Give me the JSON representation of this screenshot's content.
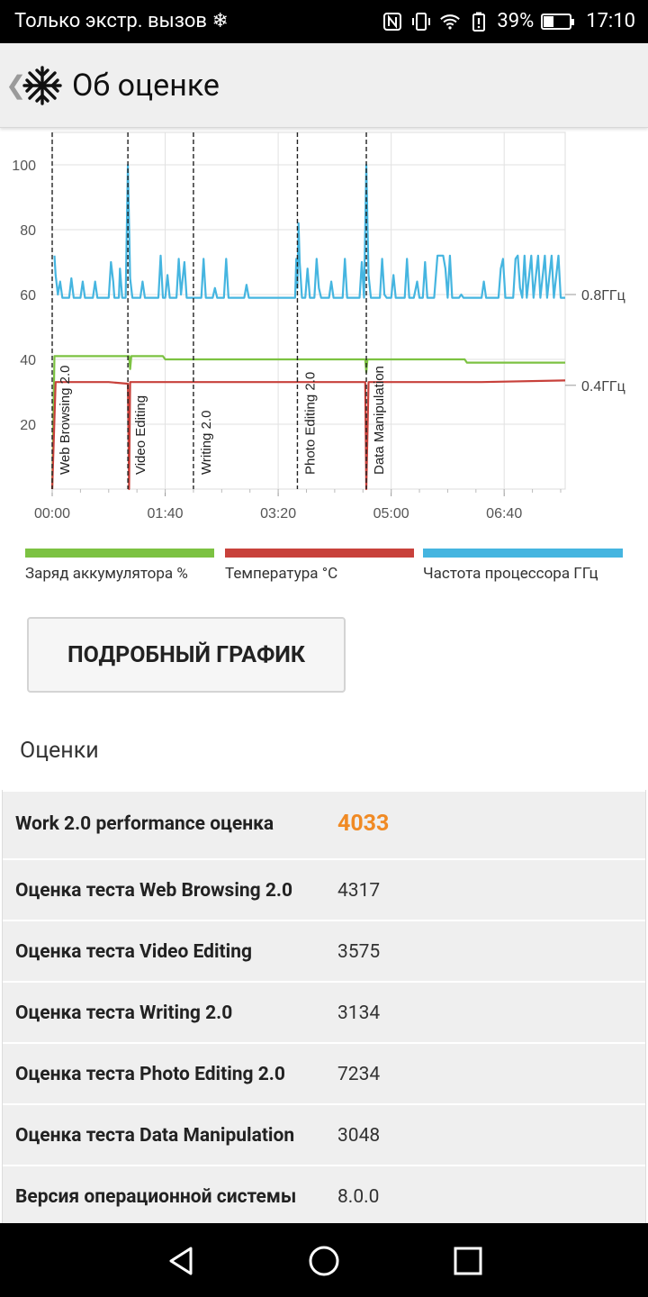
{
  "status_bar": {
    "carrier": "Только экстр. вызов",
    "battery": "39%",
    "time": "17:10",
    "icons": [
      "snowflake-icon",
      "nfc-icon",
      "vibrate-icon",
      "wifi-icon",
      "battery-alert-icon",
      "battery-icon"
    ]
  },
  "app_bar": {
    "title": "Об оценке",
    "back_icon": "chevron-left-icon",
    "logo_icon": "snowflake-logo-icon"
  },
  "chart_data": {
    "type": "line",
    "x_tick_labels": [
      "00:00",
      "01:40",
      "03:20",
      "05:00",
      "06:40"
    ],
    "y_tick_labels": [
      "20",
      "40",
      "60",
      "80",
      "100"
    ],
    "ylim": [
      0,
      110
    ],
    "right_axis_labels": [
      "0.8ГГц",
      "0.4ГГц"
    ],
    "markers": [
      {
        "label": "Web Browsing 2.0",
        "x": 0
      },
      {
        "label": "Video Editing",
        "x": 67
      },
      {
        "label": "Writing 2.0",
        "x": 125
      },
      {
        "label": "Photo Editing 2.0",
        "x": 217
      },
      {
        "label": "Data Manipulation",
        "x": 278
      }
    ],
    "xlim": [
      0,
      454
    ],
    "series": [
      {
        "name": "Заряд аккумулятора %",
        "color": "#7cc242",
        "points": [
          [
            0,
            0
          ],
          [
            2,
            41
          ],
          [
            68,
            41
          ],
          [
            69,
            37
          ],
          [
            70,
            41
          ],
          [
            98,
            41
          ],
          [
            100,
            40
          ],
          [
            277,
            40
          ],
          [
            278,
            36
          ],
          [
            279,
            40
          ],
          [
            365,
            40
          ],
          [
            367,
            39
          ],
          [
            454,
            39
          ]
        ]
      },
      {
        "name": "Температура °C",
        "color": "#c8413b",
        "points": [
          [
            0,
            0
          ],
          [
            3,
            33
          ],
          [
            50,
            33
          ],
          [
            67,
            32.5
          ],
          [
            68,
            0
          ],
          [
            69,
            33
          ],
          [
            130,
            33
          ],
          [
            277,
            33
          ],
          [
            278,
            0
          ],
          [
            280,
            33
          ],
          [
            380,
            33
          ],
          [
            454,
            33.5
          ]
        ]
      },
      {
        "name": "Частота процессора ГГц",
        "color": "#45b5e0",
        "points": [
          [
            2,
            72
          ],
          [
            3,
            66
          ],
          [
            5,
            60
          ],
          [
            7,
            64
          ],
          [
            9,
            59
          ],
          [
            15,
            59
          ],
          [
            17,
            65
          ],
          [
            19,
            59
          ],
          [
            25,
            59
          ],
          [
            27,
            64
          ],
          [
            29,
            59
          ],
          [
            36,
            59
          ],
          [
            38,
            64
          ],
          [
            40,
            59
          ],
          [
            50,
            59
          ],
          [
            52,
            70
          ],
          [
            54,
            64
          ],
          [
            55,
            59
          ],
          [
            59,
            59
          ],
          [
            60,
            68
          ],
          [
            62,
            59
          ],
          [
            65,
            59
          ],
          [
            67,
            100
          ],
          [
            69,
            65
          ],
          [
            71,
            59
          ],
          [
            78,
            59
          ],
          [
            80,
            64
          ],
          [
            82,
            59
          ],
          [
            94,
            59
          ],
          [
            96,
            72
          ],
          [
            98,
            59
          ],
          [
            100,
            59
          ],
          [
            102,
            66
          ],
          [
            104,
            59
          ],
          [
            110,
            59
          ],
          [
            112,
            71
          ],
          [
            114,
            60
          ],
          [
            117,
            70
          ],
          [
            119,
            59
          ],
          [
            132,
            59
          ],
          [
            134,
            71
          ],
          [
            136,
            59
          ],
          [
            142,
            59
          ],
          [
            144,
            62
          ],
          [
            146,
            59
          ],
          [
            152,
            59
          ],
          [
            154,
            71
          ],
          [
            156,
            59
          ],
          [
            170,
            59
          ],
          [
            172,
            63
          ],
          [
            174,
            59
          ],
          [
            200,
            59
          ],
          [
            215,
            59
          ],
          [
            216,
            71
          ],
          [
            217,
            62
          ],
          [
            218,
            82
          ],
          [
            219,
            70
          ],
          [
            221,
            59
          ],
          [
            224,
            59
          ],
          [
            226,
            68
          ],
          [
            228,
            59
          ],
          [
            232,
            59
          ],
          [
            234,
            71
          ],
          [
            236,
            62
          ],
          [
            238,
            59
          ],
          [
            245,
            59
          ],
          [
            247,
            64
          ],
          [
            249,
            59
          ],
          [
            257,
            59
          ],
          [
            259,
            71
          ],
          [
            261,
            59
          ],
          [
            272,
            59
          ],
          [
            274,
            70
          ],
          [
            276,
            59
          ],
          [
            278,
            100
          ],
          [
            280,
            66
          ],
          [
            282,
            59
          ],
          [
            290,
            59
          ],
          [
            292,
            71
          ],
          [
            294,
            60
          ],
          [
            296,
            59
          ],
          [
            300,
            59
          ],
          [
            302,
            66
          ],
          [
            304,
            59
          ],
          [
            312,
            59
          ],
          [
            314,
            71
          ],
          [
            316,
            59
          ],
          [
            320,
            59
          ],
          [
            323,
            64
          ],
          [
            325,
            59
          ],
          [
            328,
            59
          ],
          [
            330,
            70
          ],
          [
            332,
            59
          ],
          [
            338,
            59
          ],
          [
            341,
            72
          ],
          [
            346,
            72
          ],
          [
            348,
            68
          ],
          [
            350,
            59
          ],
          [
            352,
            72
          ],
          [
            354,
            59
          ],
          [
            360,
            59
          ],
          [
            362,
            60
          ],
          [
            364,
            59
          ],
          [
            380,
            59
          ],
          [
            382,
            64
          ],
          [
            384,
            59
          ],
          [
            395,
            59
          ],
          [
            397,
            68
          ],
          [
            399,
            71
          ],
          [
            401,
            59
          ],
          [
            408,
            59
          ],
          [
            410,
            71
          ],
          [
            412,
            72
          ],
          [
            414,
            62
          ],
          [
            416,
            59
          ],
          [
            418,
            72
          ],
          [
            420,
            59
          ],
          [
            424,
            72
          ],
          [
            426,
            59
          ],
          [
            430,
            72
          ],
          [
            432,
            59
          ],
          [
            436,
            72
          ],
          [
            438,
            59
          ],
          [
            442,
            72
          ],
          [
            444,
            59
          ],
          [
            448,
            72
          ],
          [
            450,
            59
          ],
          [
            454,
            59
          ]
        ]
      }
    ],
    "grid": true,
    "legend_position": "bottom"
  },
  "legend": [
    {
      "label": "Заряд аккумулятора %",
      "color": "#7cc242"
    },
    {
      "label": "Температура °C",
      "color": "#c8413b"
    },
    {
      "label": "Частота процессора ГГц",
      "color": "#45b5e0"
    }
  ],
  "detail_button": "ПОДРОБНЫЙ ГРАФИК",
  "scores_title": "Оценки",
  "scores": [
    {
      "label": "Work 2.0 performance оценка",
      "value": "4033"
    },
    {
      "label": "Оценка теста Web Browsing 2.0",
      "value": "4317"
    },
    {
      "label": "Оценка теста Video Editing",
      "value": "3575"
    },
    {
      "label": "Оценка теста Writing 2.0",
      "value": "3134"
    },
    {
      "label": "Оценка теста Photo Editing 2.0",
      "value": "7234"
    },
    {
      "label": "Оценка теста Data Manipulation",
      "value": "3048"
    },
    {
      "label": "Версия операционной системы",
      "value": "8.0.0"
    }
  ],
  "nav_bar": {
    "icons": [
      "back-triangle-icon",
      "home-circle-icon",
      "recents-square-icon"
    ]
  }
}
